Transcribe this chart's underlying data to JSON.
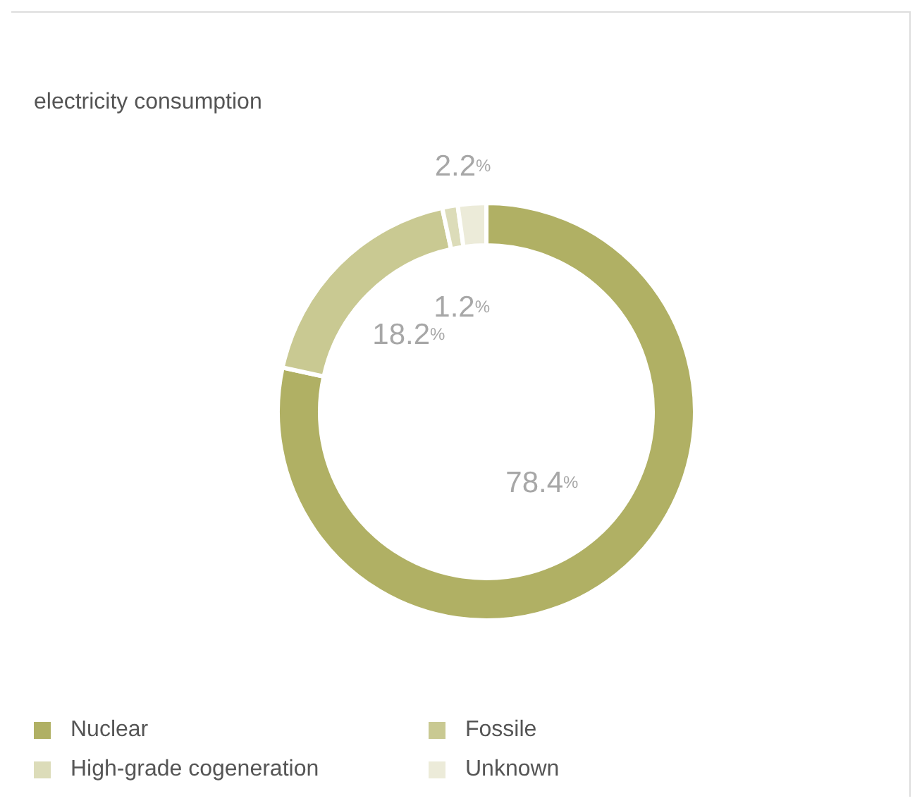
{
  "chart_data": {
    "type": "donut",
    "title": "electricity consumption",
    "categories": [
      "Nuclear",
      "Fossile",
      "High-grade cogeneration",
      "Unknown"
    ],
    "values": [
      78.4,
      18.2,
      1.2,
      2.2
    ],
    "colors": [
      "#b0b064",
      "#c9c992",
      "#dcdcb9",
      "#ecebd9"
    ],
    "value_labels": [
      "78.4%",
      "18.2%",
      "1.2%",
      "2.2%"
    ],
    "legend": "bottom"
  }
}
